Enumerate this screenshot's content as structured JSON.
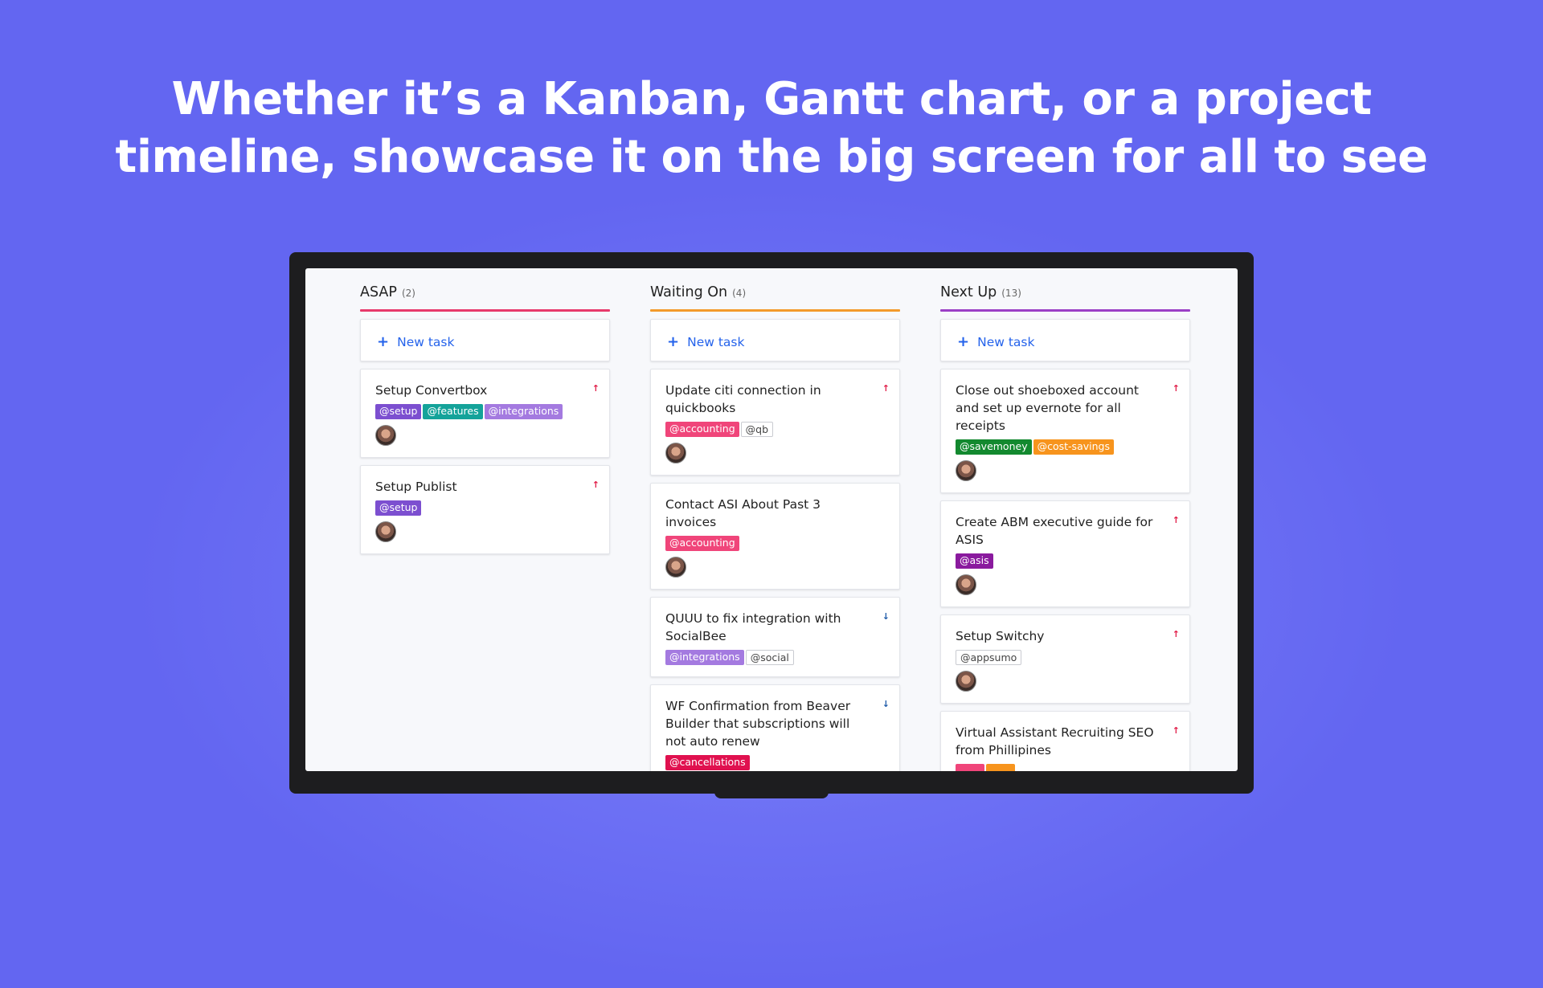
{
  "headline": {
    "line1": "Whether it’s a Kanban, Gantt chart, or a project",
    "line2": "timeline, showcase it on the big screen for all to see"
  },
  "board": {
    "new_task_label": "New task",
    "new_task_icon": "plus-icon",
    "priority_icons": {
      "up": "↑",
      "down": "↓"
    },
    "columns": [
      {
        "title": "ASAP",
        "count": "(2)",
        "color": "#e7396b",
        "cards": [
          {
            "title": "Setup Convertbox",
            "priority": "up",
            "tags": [
              {
                "label": "@setup",
                "bg": "#7c4fd0",
                "fg": "#ffffff"
              },
              {
                "label": "@features",
                "bg": "#14a39a",
                "fg": "#ffffff"
              },
              {
                "label": "@integrations",
                "bg": "#a47ae0",
                "fg": "#ffffff"
              }
            ]
          },
          {
            "title": "Setup Publist",
            "priority": "up",
            "tags": [
              {
                "label": "@setup",
                "bg": "#7c4fd0",
                "fg": "#ffffff"
              }
            ]
          }
        ]
      },
      {
        "title": "Waiting On",
        "count": "(4)",
        "color": "#f39a2b",
        "cards": [
          {
            "title": "Update citi connection in quickbooks",
            "priority": "up",
            "tags": [
              {
                "label": "@accounting",
                "bg": "#f0457a",
                "fg": "#ffffff"
              },
              {
                "label": "@qb",
                "bg": "outline",
                "fg": "#444444"
              }
            ]
          },
          {
            "title": "Contact ASI About Past 3 invoices",
            "priority": "none",
            "tags": [
              {
                "label": "@accounting",
                "bg": "#f0457a",
                "fg": "#ffffff"
              }
            ]
          },
          {
            "title": "QUUU to fix integration with SocialBee",
            "priority": "down",
            "tags": [
              {
                "label": "@integrations",
                "bg": "#a47ae0",
                "fg": "#ffffff"
              },
              {
                "label": "@social",
                "bg": "outline",
                "fg": "#444444"
              }
            ],
            "no_avatar": true
          },
          {
            "title": "WF Confirmation from Beaver Builder that subscriptions will not auto renew",
            "priority": "down",
            "tags": [
              {
                "label": "@cancellations",
                "bg": "#e0114f",
                "fg": "#ffffff"
              }
            ]
          }
        ]
      },
      {
        "title": "Next Up",
        "count": "(13)",
        "color": "#9b3fc6",
        "cards": [
          {
            "title": "Close out shoeboxed account and set up evernote for all receipts",
            "priority": "up",
            "tags": [
              {
                "label": "@savemoney",
                "bg": "#13892f",
                "fg": "#ffffff"
              },
              {
                "label": "@cost-savings",
                "bg": "#f7941d",
                "fg": "#ffffff"
              }
            ]
          },
          {
            "title": "Create ABM executive guide for ASIS",
            "priority": "up",
            "tags": [
              {
                "label": "@asis",
                "bg": "#8a1a9e",
                "fg": "#ffffff"
              }
            ]
          },
          {
            "title": "Setup Switchy",
            "priority": "up",
            "tags": [
              {
                "label": "@appsumo",
                "bg": "outline",
                "fg": "#444444"
              }
            ]
          },
          {
            "title": "Virtual Assistant Recruiting SEO from Phillipines",
            "priority": "up",
            "tags": [
              {
                "label": "",
                "bg": "#f0457a",
                "fg": "#ffffff"
              },
              {
                "label": "",
                "bg": "#f7941d",
                "fg": "#ffffff"
              }
            ]
          }
        ]
      }
    ]
  }
}
